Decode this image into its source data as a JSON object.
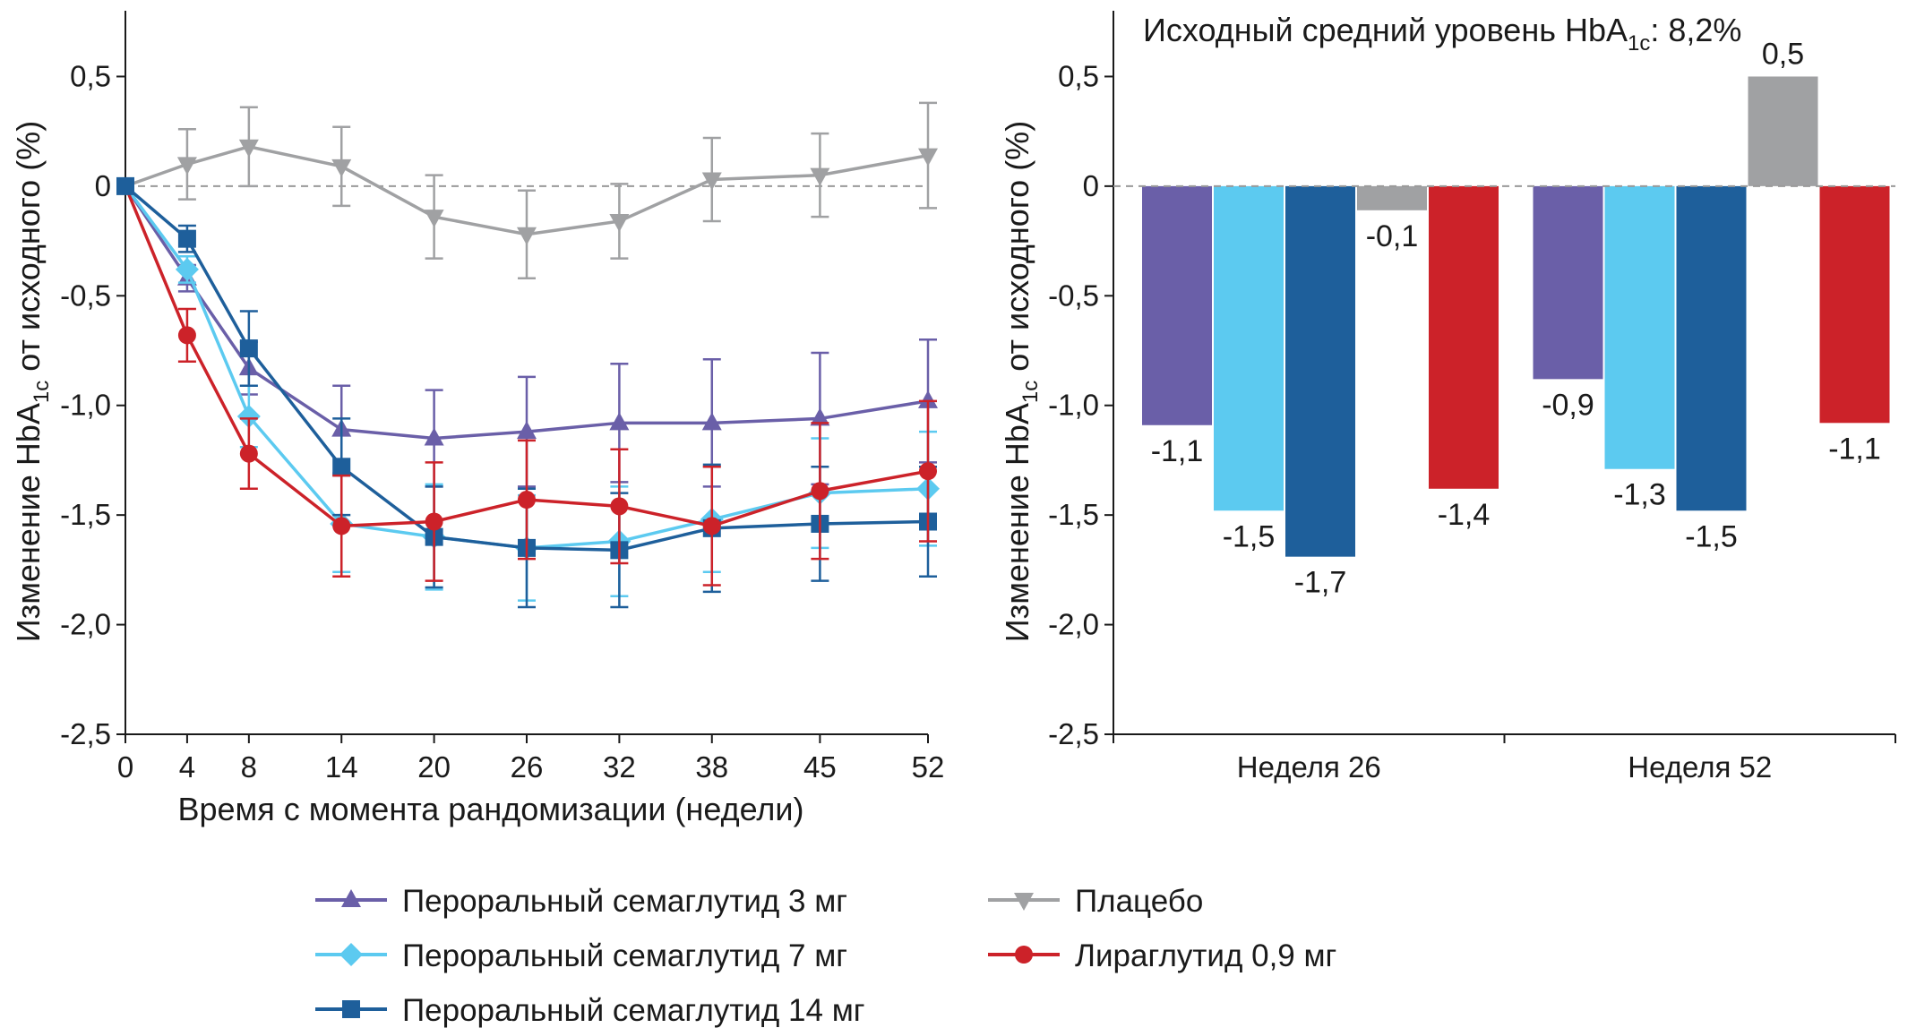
{
  "chart_data": [
    {
      "type": "line",
      "ylabel": {
        "pre": "Изменение HbA",
        "sub": "1c",
        "post": " от исходного (%)"
      },
      "xlabel": "Время с момента рандомизации (недели)",
      "ylim": [
        -2.5,
        0.8
      ],
      "yticks": [
        0.5,
        0,
        -0.5,
        -1.0,
        -1.5,
        -2.0,
        -2.5
      ],
      "ytick_labels": [
        "0,5",
        "0",
        "-0,5",
        "-1,0",
        "-1,5",
        "-2,0",
        "-2,5"
      ],
      "x": [
        0,
        4,
        8,
        14,
        20,
        26,
        32,
        38,
        45,
        52
      ],
      "x_tick_labels": [
        "0",
        "4",
        "8",
        "14",
        "20",
        "26",
        "32",
        "38",
        "45",
        "52"
      ],
      "reference_line": 0,
      "series": [
        {
          "name": "Плацебо",
          "color": "#a0a1a3",
          "marker": "triangle-down",
          "x": [
            0,
            4,
            8,
            14,
            20,
            26,
            32,
            38,
            45,
            52
          ],
          "values": [
            0,
            0.1,
            0.18,
            0.09,
            -0.14,
            -0.22,
            -0.16,
            0.03,
            0.05,
            0.14
          ],
          "err": [
            0,
            0.16,
            0.18,
            0.18,
            0.19,
            0.2,
            0.17,
            0.19,
            0.19,
            0.24
          ]
        },
        {
          "name": "Пероральный семаглутид 3 мг",
          "color": "#6a5fa8",
          "marker": "triangle-up",
          "x": [
            0,
            4,
            8,
            14,
            20,
            26,
            32,
            38,
            45,
            52
          ],
          "values": [
            0,
            -0.42,
            -0.83,
            -1.11,
            -1.15,
            -1.12,
            -1.08,
            -1.08,
            -1.06,
            -0.98
          ],
          "err": [
            0,
            0.06,
            0.12,
            0.2,
            0.22,
            0.25,
            0.27,
            0.29,
            0.3,
            0.28
          ]
        },
        {
          "name": "Пероральный семаглутид 7 мг",
          "color": "#5ccaf0",
          "marker": "diamond",
          "x": [
            0,
            4,
            8,
            14,
            20,
            26,
            32,
            38,
            45,
            52
          ],
          "values": [
            0,
            -0.38,
            -1.05,
            -1.54,
            -1.6,
            -1.65,
            -1.62,
            -1.52,
            -1.4,
            -1.38
          ],
          "err": [
            0,
            0.06,
            0.14,
            0.22,
            0.24,
            0.24,
            0.25,
            0.24,
            0.25,
            0.26
          ]
        },
        {
          "name": "Пероральный семаглутид 14 мг",
          "color": "#1e5f9b",
          "marker": "square",
          "x": [
            0,
            4,
            8,
            14,
            20,
            26,
            32,
            38,
            45,
            52
          ],
          "values": [
            0,
            -0.24,
            -0.74,
            -1.28,
            -1.6,
            -1.65,
            -1.66,
            -1.56,
            -1.54,
            -1.53
          ],
          "err": [
            0,
            0.06,
            0.17,
            0.22,
            0.23,
            0.27,
            0.26,
            0.29,
            0.26,
            0.25
          ]
        },
        {
          "name": "Лираглутид 0,9 мг",
          "color": "#cc2229",
          "marker": "circle",
          "x": [
            0,
            4,
            8,
            14,
            20,
            26,
            32,
            38,
            45,
            52
          ],
          "values": [
            0,
            -0.68,
            -1.22,
            -1.55,
            -1.53,
            -1.43,
            -1.46,
            -1.55,
            -1.39,
            -1.3
          ],
          "err": [
            0,
            0.12,
            0.16,
            0.23,
            0.27,
            0.27,
            0.26,
            0.27,
            0.31,
            0.32
          ]
        }
      ]
    },
    {
      "type": "bar",
      "annotation": {
        "pre": "Исходный средний уровень HbA",
        "sub": "1c",
        "post": ": 8,2%"
      },
      "ylabel": {
        "pre": "Изменение HbA",
        "sub": "1c",
        "post": " от исходного (%)"
      },
      "ylim": [
        -2.5,
        0.8
      ],
      "yticks": [
        0.5,
        0,
        -0.5,
        -1.0,
        -1.5,
        -2.0,
        -2.5
      ],
      "ytick_labels": [
        "0,5",
        "0",
        "-0,5",
        "-1,0",
        "-1,5",
        "-2,0",
        "-2,5"
      ],
      "categories": [
        "Неделя 26",
        "Неделя 52"
      ],
      "series": [
        {
          "name": "Пероральный семаглутид 3 мг",
          "color": "#6a5fa8",
          "values": [
            -1.09,
            -0.88
          ],
          "labels": [
            "-1,1",
            "-0,9"
          ]
        },
        {
          "name": "Пероральный семаглутид 7 мг",
          "color": "#5ccaf0",
          "values": [
            -1.48,
            -1.29
          ],
          "labels": [
            "-1,5",
            "-1,3"
          ]
        },
        {
          "name": "Пероральный семаглутид 14 мг",
          "color": "#1e5f9b",
          "values": [
            -1.69,
            -1.48
          ],
          "labels": [
            "-1,7",
            "-1,5"
          ]
        },
        {
          "name": "Плацебо",
          "color": "#a0a1a3",
          "values": [
            -0.11,
            0.5
          ],
          "labels": [
            "-0,1",
            "0,5"
          ]
        },
        {
          "name": "Лираглутид 0,9 мг",
          "color": "#cc2229",
          "values": [
            -1.38,
            -1.08
          ],
          "labels": [
            "-1,4",
            "-1,1"
          ]
        }
      ]
    }
  ],
  "legend": [
    {
      "label": "Пероральный семаглутид 3 мг",
      "color": "#6a5fa8",
      "marker": "triangle-up"
    },
    {
      "label": "Пероральный семаглутид 7 мг",
      "color": "#5ccaf0",
      "marker": "diamond"
    },
    {
      "label": "Пероральный семаглутид 14 мг",
      "color": "#1e5f9b",
      "marker": "square"
    },
    {
      "label": "Плацебо",
      "color": "#a0a1a3",
      "marker": "triangle-down"
    },
    {
      "label": "Лираглутид 0,9 мг",
      "color": "#cc2229",
      "marker": "circle"
    }
  ]
}
